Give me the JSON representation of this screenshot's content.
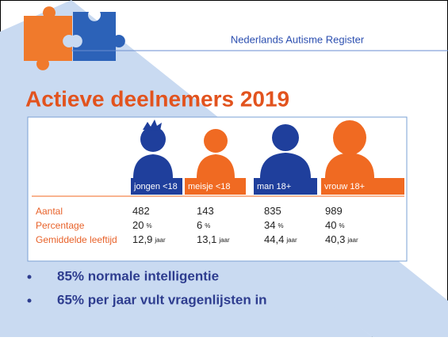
{
  "header": {
    "title": "Nederlands Autisme Register"
  },
  "slide": {
    "title": "Actieve deelnemers 2019"
  },
  "table": {
    "columns": [
      "jongen <18",
      "meisje <18",
      "man 18+",
      "vrouw 18+"
    ],
    "rows": [
      {
        "label": "Aantal",
        "cells": [
          {
            "value": "482"
          },
          {
            "value": "143"
          },
          {
            "value": "835"
          },
          {
            "value": "989"
          }
        ]
      },
      {
        "label": "Percentage",
        "cells": [
          {
            "value": "20",
            "unit": "%"
          },
          {
            "value": "6",
            "unit": "%"
          },
          {
            "value": "34",
            "unit": "%"
          },
          {
            "value": "40",
            "unit": "%"
          }
        ]
      },
      {
        "label": "Gemiddelde leeftijd",
        "cells": [
          {
            "value": "12,9",
            "unit": "jaar"
          },
          {
            "value": "13,1",
            "unit": "jaar"
          },
          {
            "value": "44,4",
            "unit": "jaar"
          },
          {
            "value": "40,3",
            "unit": "jaar"
          }
        ]
      }
    ]
  },
  "bullets": [
    "85% normale intelligentie",
    "65% per jaar vult vragenlijsten in"
  ]
}
